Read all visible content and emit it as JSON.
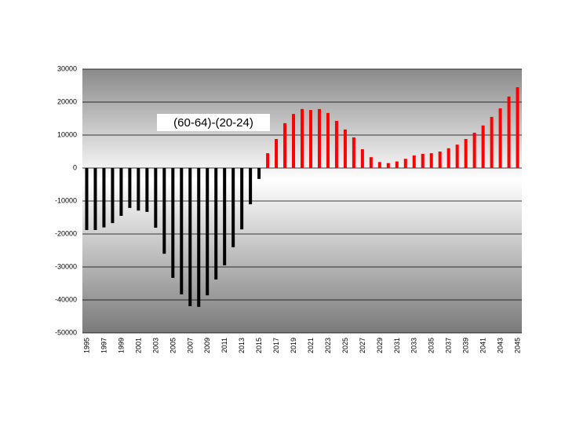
{
  "chart_data": {
    "type": "bar",
    "annotation": "(60-64)-(20-24)",
    "categories": [
      1995,
      null,
      1997,
      null,
      1999,
      null,
      2001,
      null,
      2003,
      null,
      2005,
      null,
      2007,
      null,
      2009,
      null,
      2011,
      null,
      2013,
      null,
      2015,
      null,
      2017,
      null,
      2019,
      null,
      2021,
      null,
      2023,
      null,
      2025,
      null,
      2027,
      null,
      2029,
      null,
      2031,
      null,
      2033,
      null,
      2035,
      null,
      2037,
      null,
      2039,
      null,
      2041,
      null,
      2043,
      null,
      2045
    ],
    "values": [
      -18800,
      -18800,
      -18000,
      -16700,
      -14500,
      -12100,
      -12900,
      -13300,
      -18100,
      -26000,
      -33300,
      -38300,
      -41900,
      -42100,
      -38600,
      -33800,
      -29500,
      -24000,
      -18600,
      -11000,
      -3300,
      4500,
      8800,
      13600,
      16400,
      17900,
      17600,
      17900,
      16700,
      14300,
      11700,
      9300,
      5700,
      3300,
      1800,
      1500,
      2000,
      2800,
      3800,
      4300,
      4500,
      5000,
      6000,
      7100,
      8800,
      10700,
      12900,
      15500,
      18100,
      21700,
      24500
    ],
    "color": "#ff0000",
    "negative_color": "#000000",
    "ylim": [
      -50000,
      30000
    ],
    "yticks": [
      -50000,
      -40000,
      -30000,
      -20000,
      -10000,
      0,
      10000,
      20000,
      30000
    ],
    "grid": true
  }
}
